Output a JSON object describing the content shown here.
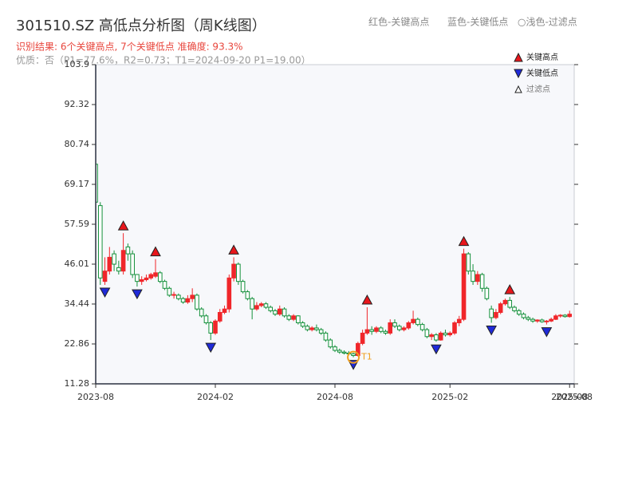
{
  "chart_data": {
    "type": "candlestick",
    "title": "301510.SZ 高低点分析图（周K线图）",
    "header_legend": [
      "红色-关键高点",
      "蓝色-关键低点",
      "○浅色-过滤点"
    ],
    "result_line": "识别结果: 6个关键高点, 7个关键低点  准确度: 93.3%",
    "quality_line": "优质：否（P1=77.6%，R2=0.73；T1=2024-09-20 P1=19.00）",
    "legend": [
      "关键高点",
      "关键低点",
      "过滤点"
    ],
    "up_color": "#f0262a",
    "down_color": "#13903a",
    "high_marker_color": "#e8161b",
    "low_marker_color": "#1f2ad8",
    "filtered_color": "#ffffff",
    "ylim": [
      11.28,
      103.9
    ],
    "yticks": [
      11.28,
      22.86,
      34.44,
      46.01,
      57.59,
      69.17,
      80.74,
      92.32,
      103.9
    ],
    "xlim": [
      0,
      104
    ],
    "xticks": [
      {
        "value": 0,
        "label": "2023-08"
      },
      {
        "value": 26,
        "label": "2024-02"
      },
      {
        "value": 52,
        "label": "2024-08"
      },
      {
        "value": 77,
        "label": "2025-02"
      },
      {
        "value": 103,
        "label": "2025-08"
      },
      {
        "value": 104,
        "label": "2025-08"
      }
    ],
    "candles": [
      [
        75,
        76,
        62,
        64
      ],
      [
        63,
        64,
        40,
        42
      ],
      [
        41,
        48,
        40,
        44
      ],
      [
        44,
        51,
        43,
        48
      ],
      [
        49,
        50,
        44,
        46
      ],
      [
        45,
        47,
        43,
        44
      ],
      [
        44,
        55,
        43,
        50
      ],
      [
        51,
        52,
        47,
        49
      ],
      [
        49,
        50,
        42,
        43
      ],
      [
        43,
        43,
        39.5,
        41
      ],
      [
        41,
        42.5,
        40,
        41.5
      ],
      [
        41.5,
        43,
        41,
        42
      ],
      [
        42,
        43.5,
        41.5,
        43
      ],
      [
        42.5,
        47.5,
        42,
        43.5
      ],
      [
        43.5,
        44,
        40.5,
        41
      ],
      [
        41,
        41.5,
        38.5,
        39
      ],
      [
        39,
        39.5,
        36.5,
        37
      ],
      [
        37,
        38,
        36,
        37.2
      ],
      [
        37,
        37.5,
        35.5,
        36
      ],
      [
        36,
        36.5,
        34.5,
        35
      ],
      [
        35,
        37,
        34.5,
        36
      ],
      [
        36,
        39,
        35,
        37
      ],
      [
        37,
        37.5,
        32.5,
        33
      ],
      [
        33,
        33.5,
        30.5,
        31
      ],
      [
        31,
        31.5,
        28.5,
        29
      ],
      [
        29,
        29.5,
        24,
        26
      ],
      [
        26,
        30,
        25.5,
        29.5
      ],
      [
        29.5,
        33,
        29,
        32
      ],
      [
        32,
        34,
        31.5,
        33
      ],
      [
        33,
        43,
        32,
        42
      ],
      [
        42,
        48,
        41,
        46
      ],
      [
        46,
        46.5,
        40,
        41
      ],
      [
        41,
        41.5,
        37.5,
        38
      ],
      [
        38,
        38.5,
        35.5,
        36
      ],
      [
        36,
        36.5,
        30,
        33
      ],
      [
        33,
        35,
        32.5,
        34
      ],
      [
        34,
        35,
        33.5,
        34.5
      ],
      [
        34.5,
        35,
        33,
        33.5
      ],
      [
        33.5,
        34,
        32,
        32.5
      ],
      [
        32.5,
        33,
        31,
        31.5
      ],
      [
        31.5,
        34,
        31,
        33
      ],
      [
        33,
        33.5,
        30.5,
        31
      ],
      [
        31,
        31.5,
        29.5,
        30
      ],
      [
        30,
        31.5,
        29.5,
        31
      ],
      [
        31,
        31.2,
        28.5,
        29
      ],
      [
        29,
        29.5,
        27.5,
        28
      ],
      [
        28,
        28.5,
        26.5,
        27
      ],
      [
        27,
        28,
        26.5,
        27.5
      ],
      [
        27.5,
        28.5,
        26.5,
        27
      ],
      [
        27,
        27.5,
        25.5,
        26
      ],
      [
        26,
        26.5,
        23.5,
        24
      ],
      [
        24,
        24.5,
        21.5,
        22
      ],
      [
        22,
        22.5,
        20.5,
        21
      ],
      [
        21,
        21.5,
        20,
        20.5
      ],
      [
        20.5,
        21,
        19.8,
        20.2
      ],
      [
        20.2,
        20.8,
        19.5,
        20
      ],
      [
        20,
        20.3,
        19,
        19.5
      ],
      [
        19.5,
        23.5,
        19.2,
        23
      ],
      [
        23,
        27,
        22.5,
        26
      ],
      [
        26,
        33.5,
        25.5,
        27
      ],
      [
        27,
        28,
        25.5,
        26.5
      ],
      [
        26.5,
        28,
        26,
        27.5
      ],
      [
        27.5,
        28,
        26,
        26.5
      ],
      [
        26.5,
        27,
        25.5,
        26
      ],
      [
        26,
        30,
        25.5,
        29
      ],
      [
        29,
        30,
        27.5,
        28
      ],
      [
        28,
        28.5,
        26.5,
        27
      ],
      [
        27,
        28,
        26.5,
        27.5
      ],
      [
        27.5,
        29.5,
        27,
        29
      ],
      [
        29,
        32.5,
        28.5,
        30
      ],
      [
        30,
        30.5,
        28,
        28.5
      ],
      [
        28.5,
        29,
        26.5,
        27
      ],
      [
        27,
        27.5,
        24.5,
        25
      ],
      [
        25,
        26,
        24,
        25.5
      ],
      [
        25.5,
        26,
        23.5,
        24
      ],
      [
        24,
        26.5,
        23.8,
        26
      ],
      [
        26,
        27,
        25,
        25.5
      ],
      [
        25.5,
        26.5,
        25,
        26
      ],
      [
        26,
        29.5,
        25.5,
        29
      ],
      [
        29,
        31,
        28,
        30
      ],
      [
        30,
        50.5,
        29.5,
        49
      ],
      [
        49,
        49.5,
        43,
        44
      ],
      [
        44,
        46,
        40,
        41
      ],
      [
        41,
        44,
        40,
        43
      ],
      [
        43,
        43.5,
        38,
        39
      ],
      [
        39,
        39.5,
        35.5,
        36
      ],
      [
        33,
        34,
        29,
        30.5
      ],
      [
        30.5,
        33,
        30,
        32
      ],
      [
        32,
        35,
        31.5,
        34.5
      ],
      [
        34.5,
        36,
        34,
        35.5
      ],
      [
        35.5,
        36.5,
        33,
        33.5
      ],
      [
        33.5,
        34,
        32,
        32.5
      ],
      [
        32.5,
        33,
        31,
        31.5
      ],
      [
        31.5,
        32,
        30,
        30.5
      ],
      [
        30.5,
        31,
        29.5,
        30
      ],
      [
        30,
        30.5,
        29,
        29.5
      ],
      [
        29.5,
        30,
        29,
        29.8
      ],
      [
        29.8,
        30.2,
        29,
        29.3
      ],
      [
        29.3,
        29.8,
        28.5,
        29.5
      ],
      [
        29.5,
        30.5,
        29.2,
        30
      ],
      [
        30,
        31.5,
        29.8,
        31
      ],
      [
        31,
        31.5,
        30.5,
        31.2
      ],
      [
        31.2,
        31.5,
        30.5,
        30.8
      ],
      [
        30.8,
        32.5,
        30.5,
        31.5
      ]
    ],
    "key_highs": [
      6,
      13,
      30,
      59,
      80,
      90
    ],
    "key_lows": [
      2,
      9,
      25,
      56,
      74,
      86,
      98
    ],
    "annotation": {
      "text": "T1",
      "index": 56
    }
  }
}
